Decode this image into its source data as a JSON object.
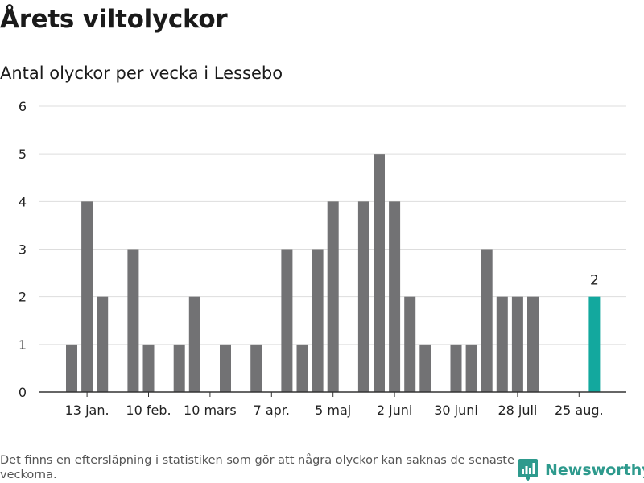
{
  "title": "Årets viltolyckor",
  "subtitle": "Antal olyckor per vecka i Lessebo",
  "footnote": "Det finns en eftersläpning i statistiken som gör att några olyckor kan saknas de senaste veckorna.",
  "brand": {
    "name": "Newsworthy",
    "icon": "bar-chart-icon",
    "color": "#2e9a8d"
  },
  "chart_data": {
    "type": "bar",
    "title": "Antal olyckor per vecka i Lessebo",
    "xlabel": "",
    "ylabel": "",
    "ylim": [
      0,
      6
    ],
    "yticks": [
      0,
      1,
      2,
      3,
      4,
      5,
      6
    ],
    "grid": true,
    "x_tick_labels": [
      {
        "label": "13 jan.",
        "week": 2
      },
      {
        "label": "10 feb.",
        "week": 6
      },
      {
        "label": "10 mars",
        "week": 10
      },
      {
        "label": "7 apr.",
        "week": 14
      },
      {
        "label": "5 maj",
        "week": 18
      },
      {
        "label": "2 juni",
        "week": 22
      },
      {
        "label": "30 juni",
        "week": 26
      },
      {
        "label": "28 juli",
        "week": 30
      },
      {
        "label": "25 aug.",
        "week": 34
      }
    ],
    "weeks": [
      1,
      2,
      3,
      4,
      5,
      6,
      7,
      8,
      9,
      10,
      11,
      12,
      13,
      14,
      15,
      16,
      17,
      18,
      19,
      20,
      21,
      22,
      23,
      24,
      25,
      26,
      27,
      28,
      29,
      30,
      31,
      32,
      33,
      34,
      35
    ],
    "values": [
      1,
      4,
      2,
      0,
      3,
      1,
      0,
      1,
      2,
      0,
      1,
      0,
      1,
      0,
      3,
      1,
      3,
      4,
      0,
      4,
      5,
      4,
      2,
      1,
      0,
      1,
      1,
      3,
      2,
      2,
      2,
      0,
      0,
      0,
      2
    ],
    "bar_color": "#727274",
    "highlight_color": "#13a89e",
    "highlight_week": 35,
    "highlight_label": "2"
  }
}
